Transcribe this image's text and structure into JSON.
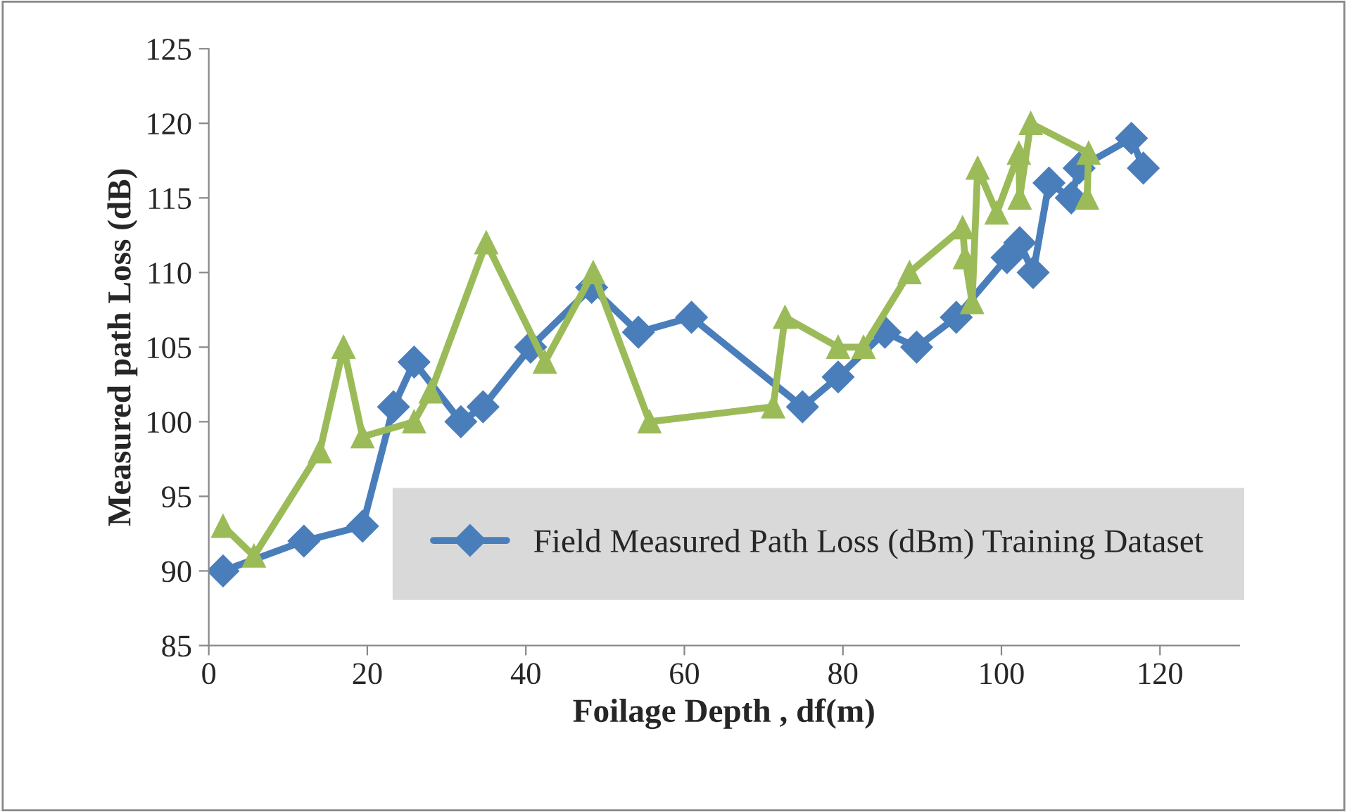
{
  "chart_data": {
    "type": "line",
    "xlabel": "Foilage Depth , df(m)",
    "ylabel": "Measured path Loss (dB)",
    "xlim": [
      0,
      130
    ],
    "xticks": [
      0,
      20,
      40,
      60,
      80,
      100,
      120
    ],
    "ylim": [
      85,
      125
    ],
    "yticks": [
      85,
      90,
      95,
      100,
      105,
      110,
      115,
      120,
      125
    ],
    "grid": false,
    "legend": "bottom right",
    "line_style": "solid",
    "series": [
      {
        "name": "Field Measured Path Loss (dBm) Training Dataset",
        "color": "#4a7ebb",
        "marker": "diamond",
        "x": [
          1.8,
          12,
          19.4,
          23.3,
          25.9,
          31.8,
          34.6,
          40.6,
          48.3,
          54.2,
          60.9,
          74.9,
          79.4,
          85.3,
          89.3,
          94.3,
          100.7,
          102.3,
          104,
          106,
          108.8,
          109.8,
          116.4,
          117.9
        ],
        "values": [
          90,
          92,
          93,
          101,
          104,
          100,
          101,
          105,
          109,
          106,
          107,
          101,
          103,
          106,
          105,
          107,
          111,
          112,
          110,
          116,
          115,
          117,
          119,
          117
        ]
      },
      {
        "color": "#9bbb59",
        "marker": "triangle",
        "x": [
          1.8,
          5.7,
          14,
          17,
          19.4,
          25.9,
          28,
          35,
          42.4,
          48.5,
          55.6,
          71.2,
          72.7,
          79.4,
          82.6,
          88.4,
          95.1,
          95.4,
          96.3,
          97,
          99.4,
          102.2,
          102.3,
          103.7,
          111,
          110.8
        ],
        "values": [
          93,
          91,
          98,
          105,
          99,
          100,
          102,
          112,
          104,
          110,
          100,
          101,
          107,
          105,
          105,
          110,
          113,
          111,
          108,
          117,
          114,
          118,
          115,
          120,
          118,
          115
        ]
      }
    ]
  }
}
